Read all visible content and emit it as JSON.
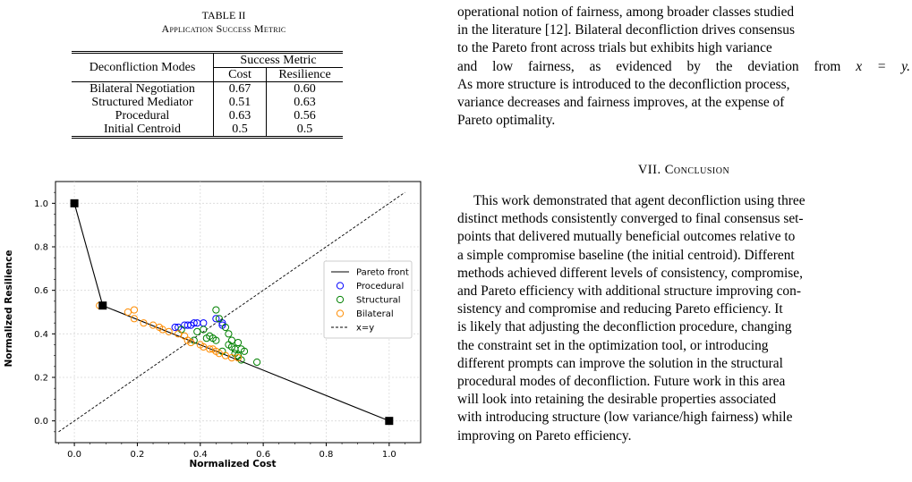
{
  "table": {
    "caption_number": "TABLE II",
    "caption_title": "Application Success Metric",
    "header_mode": "Deconfliction Modes",
    "header_group": "Success Metric",
    "header_cost": "Cost",
    "header_resilience": "Resilience",
    "rows": [
      {
        "mode": "Bilateral Negotiation",
        "cost": "0.67",
        "resilience": "0.60"
      },
      {
        "mode": "Structured Mediator",
        "cost": "0.51",
        "resilience": "0.63"
      },
      {
        "mode": "Procedural",
        "cost": "0.63",
        "resilience": "0.56"
      },
      {
        "mode": "Initial Centroid",
        "cost": "0.5",
        "resilience": "0.5"
      }
    ]
  },
  "para1": {
    "line1": "operational notion of fairness, among broader classes studied",
    "line2": "in the literature [12]. Bilateral deconfliction drives consensus",
    "line3": "to the Pareto front across trials but exhibits high variance",
    "line4_pre": "and low fairness, as evidenced by the deviation from",
    "line4_math": "x = y.",
    "line5": "As more structure is introduced to the deconfliction process,",
    "line6": "variance decreases and fairness improves, at the expense of",
    "line7": "Pareto optimality."
  },
  "section": {
    "number": "VII.",
    "title": "Conclusion"
  },
  "conclusion": [
    "This work demonstrated that agent deconfliction using three",
    "distinct methods consistently converged to final consensus set-",
    "points that delivered mutually beneficial outcomes relative to",
    "a simple compromise baseline (the initial centroid). Different",
    "methods achieved different levels of consistency, compromise,",
    "and Pareto efficiency with additional structure improving con-",
    "sistency and compromise and reducing Pareto efficiency. It",
    "is likely that adjusting the deconfliction procedure, changing",
    "the constraint set in the optimization tool, or introducing",
    "different prompts can improve the solution in the structural",
    "procedural modes of deconfliction. Future work in this area",
    "will look into retaining the desirable properties associated",
    "with introducing structure (low variance/high fairness) while",
    "improving on Pareto efficiency."
  ],
  "chart_data": {
    "type": "scatter",
    "xlabel": "Normalized Cost",
    "ylabel": "Normalized Resilience",
    "xlim": [
      -0.06,
      1.1
    ],
    "ylim": [
      -0.1,
      1.1
    ],
    "xticks": [
      "0.0",
      "0.2",
      "0.4",
      "0.6",
      "0.8",
      "1.0"
    ],
    "yticks": [
      "0.0",
      "0.2",
      "0.4",
      "0.6",
      "0.8",
      "1.0"
    ],
    "legend_position": "right",
    "legend": [
      "Pareto front",
      "Procedural",
      "Structural",
      "Bilateral",
      "x=y"
    ],
    "pareto_front": {
      "name": "Pareto front",
      "x": [
        0.0,
        0.09,
        1.0
      ],
      "y": [
        1.0,
        0.53,
        0.0
      ],
      "color": "#000000"
    },
    "identity_line": {
      "name": "x=y",
      "x": [
        -0.05,
        1.05
      ],
      "y": [
        -0.05,
        1.05
      ],
      "color": "#000000"
    },
    "series": [
      {
        "name": "Procedural",
        "color": "#0000ff",
        "x": [
          0.32,
          0.33,
          0.35,
          0.36,
          0.37,
          0.38,
          0.39,
          0.41,
          0.45,
          0.47,
          0.47
        ],
        "y": [
          0.43,
          0.43,
          0.44,
          0.44,
          0.44,
          0.45,
          0.45,
          0.45,
          0.47,
          0.44,
          0.45
        ]
      },
      {
        "name": "Structural",
        "color": "#008000",
        "x": [
          0.34,
          0.38,
          0.39,
          0.41,
          0.42,
          0.43,
          0.44,
          0.45,
          0.45,
          0.46,
          0.47,
          0.48,
          0.49,
          0.49,
          0.5,
          0.5,
          0.51,
          0.51,
          0.52,
          0.52,
          0.53,
          0.53,
          0.54,
          0.58
        ],
        "y": [
          0.42,
          0.37,
          0.41,
          0.42,
          0.38,
          0.39,
          0.38,
          0.37,
          0.51,
          0.47,
          0.32,
          0.43,
          0.4,
          0.35,
          0.34,
          0.37,
          0.33,
          0.31,
          0.36,
          0.3,
          0.33,
          0.28,
          0.32,
          0.27
        ]
      },
      {
        "name": "Bilateral",
        "color": "#ff8c00",
        "x": [
          0.08,
          0.09,
          0.17,
          0.19,
          0.19,
          0.22,
          0.25,
          0.27,
          0.28,
          0.3,
          0.33,
          0.35,
          0.36,
          0.37,
          0.4,
          0.41,
          0.43,
          0.44,
          0.45,
          0.46,
          0.48,
          0.5,
          0.52
        ],
        "y": [
          0.53,
          0.53,
          0.5,
          0.51,
          0.47,
          0.45,
          0.44,
          0.43,
          0.42,
          0.41,
          0.4,
          0.39,
          0.37,
          0.36,
          0.35,
          0.34,
          0.33,
          0.33,
          0.32,
          0.31,
          0.3,
          0.29,
          0.29
        ]
      }
    ],
    "markers": {
      "x": [
        0.0,
        0.09,
        1.0
      ],
      "y": [
        1.0,
        0.53,
        0.0
      ],
      "color": "#000000"
    }
  }
}
